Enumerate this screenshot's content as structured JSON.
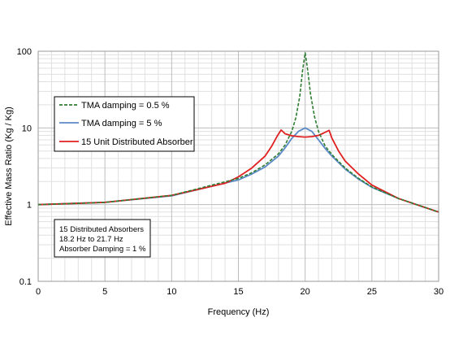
{
  "chart_data": {
    "type": "line",
    "title": "",
    "xlabel": "Frequency (Hz)",
    "ylabel": "Effective Mass Ratio (Kg / Kg)",
    "xlim": [
      0,
      30
    ],
    "ylim": [
      0.1,
      100
    ],
    "yscale": "log",
    "grid": true,
    "x_ticks": [
      "0",
      "5",
      "10",
      "15",
      "20",
      "25",
      "30"
    ],
    "y_ticks": [
      "0.1",
      "1",
      "10",
      "100"
    ],
    "legend_position": "upper-left",
    "series": [
      {
        "name": "TMA damping = 0.5 %",
        "color": "#2e7d32",
        "dash": "dashed",
        "x": [
          0,
          5,
          10,
          15,
          16,
          17,
          18,
          18.5,
          19,
          19.3,
          19.6,
          19.8,
          20,
          20.2,
          20.4,
          20.7,
          21,
          21.5,
          22,
          23,
          24,
          25,
          27,
          30
        ],
        "y": [
          1.0,
          1.07,
          1.32,
          2.2,
          2.6,
          3.3,
          4.6,
          6.0,
          9.0,
          13.5,
          26,
          55,
          95,
          55,
          28,
          14,
          9.0,
          5.8,
          4.5,
          3.0,
          2.2,
          1.7,
          1.2,
          0.8
        ]
      },
      {
        "name": "TMA damping = 5 %",
        "color": "#5b8ac6",
        "dash": "solid",
        "x": [
          0,
          5,
          10,
          15,
          16,
          17,
          18,
          18.5,
          19,
          19.5,
          20,
          20.5,
          21,
          21.5,
          22,
          23,
          24,
          25,
          27,
          30
        ],
        "y": [
          1.0,
          1.07,
          1.3,
          2.1,
          2.5,
          3.1,
          4.3,
          5.5,
          7.3,
          9.0,
          10.0,
          9.0,
          7.0,
          5.4,
          4.3,
          2.9,
          2.15,
          1.68,
          1.2,
          0.8
        ]
      },
      {
        "name": "15 Unit Distributed Absorber",
        "color": "#e02020",
        "dash": "solid",
        "x": [
          0,
          5,
          10,
          14,
          15,
          16,
          17,
          17.5,
          17.9,
          18.2,
          18.5,
          19,
          19.5,
          20,
          20.5,
          21,
          21.4,
          21.8,
          22,
          22.5,
          23,
          24,
          25,
          27,
          30
        ],
        "y": [
          1.0,
          1.07,
          1.32,
          1.9,
          2.3,
          3.0,
          4.3,
          5.8,
          7.8,
          9.4,
          8.4,
          7.9,
          7.7,
          7.6,
          7.7,
          8.0,
          8.6,
          9.3,
          7.4,
          5.0,
          3.7,
          2.5,
          1.8,
          1.2,
          0.8
        ]
      }
    ],
    "annotation_lines": [
      "15 Distributed Absorbers",
      "18.2 Hz to 21.7 Hz",
      "Absorber Damping = 1 %"
    ]
  }
}
